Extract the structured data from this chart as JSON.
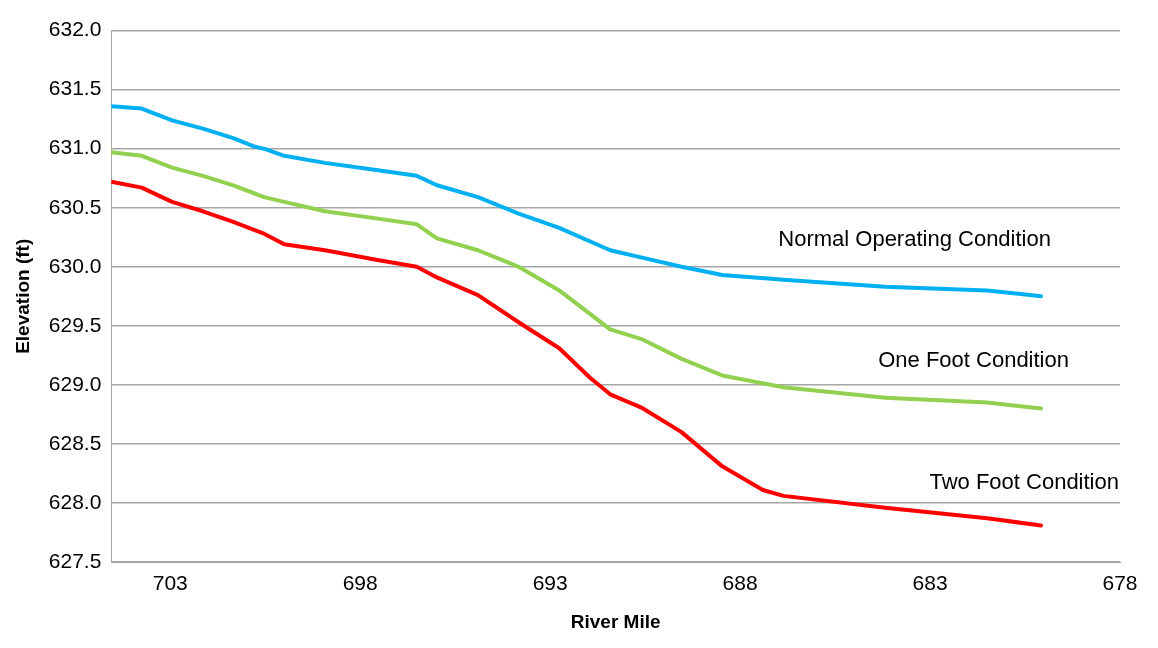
{
  "chart_data": {
    "type": "line",
    "xlabel": "River Mile",
    "ylabel": "Elevation (ft)",
    "xlim": [
      704.55,
      678
    ],
    "xticks": [
      703,
      698,
      693,
      688,
      683,
      678
    ],
    "ylim": [
      627.5,
      632
    ],
    "yticks": [
      {
        "value": 627.5,
        "label": "627.5"
      },
      {
        "value": 628,
        "label": "628.0"
      },
      {
        "value": 628.5,
        "label": "628.5"
      },
      {
        "value": 629,
        "label": "629.0"
      },
      {
        "value": 629.5,
        "label": "629.5"
      },
      {
        "value": 630,
        "label": "630.0"
      },
      {
        "value": 630.5,
        "label": "630.5"
      },
      {
        "value": 631,
        "label": "631.0"
      },
      {
        "value": 631.5,
        "label": "631.5"
      },
      {
        "value": 632,
        "label": "632.0"
      }
    ],
    "grid": "y",
    "legend": false,
    "marker": "none",
    "line_style": "solid",
    "series": [
      {
        "name": "Normal Operating Condition",
        "color": "#00b0f0",
        "x": [
          704.55,
          703.75,
          702.95,
          702.14,
          701.34,
          700.8,
          700.53,
          700.0,
          698.93,
          697.58,
          696.51,
          695.98,
          694.9,
          693.83,
          692.76,
          691.42,
          690.61,
          689.54,
          688.47,
          686.86,
          684.18,
          681.5,
          680.08
        ],
        "values": [
          631.36,
          631.34,
          631.24,
          631.17,
          631.09,
          631.02,
          631.0,
          630.94,
          630.88,
          630.82,
          630.77,
          630.69,
          630.59,
          630.45,
          630.33,
          630.14,
          630.08,
          630.0,
          629.93,
          629.89,
          629.83,
          629.8,
          629.75
        ]
      },
      {
        "name": "One Foot Condition",
        "color": "#92d050",
        "x": [
          704.55,
          703.75,
          702.95,
          702.14,
          701.34,
          700.53,
          700.0,
          698.93,
          697.58,
          696.51,
          695.98,
          694.9,
          693.83,
          692.76,
          691.42,
          690.61,
          689.54,
          688.47,
          686.86,
          684.18,
          681.5,
          680.08
        ],
        "values": [
          630.97,
          630.94,
          630.84,
          630.77,
          630.69,
          630.59,
          630.55,
          630.47,
          630.41,
          630.36,
          630.24,
          630.14,
          630.0,
          629.8,
          629.47,
          629.39,
          629.22,
          629.08,
          628.98,
          628.89,
          628.85,
          628.8
        ]
      },
      {
        "name": "Two Foot Condition",
        "color": "#ff0000",
        "x": [
          704.55,
          703.75,
          702.95,
          702.14,
          701.34,
          700.53,
          700.0,
          698.93,
          697.58,
          696.51,
          695.98,
          694.9,
          693.83,
          692.76,
          691.95,
          691.42,
          690.61,
          689.54,
          688.47,
          687.4,
          686.86,
          684.18,
          681.5,
          680.08
        ],
        "values": [
          630.72,
          630.67,
          630.55,
          630.47,
          630.38,
          630.28,
          630.19,
          630.14,
          630.06,
          630.0,
          629.91,
          629.76,
          629.53,
          629.31,
          629.06,
          628.92,
          628.81,
          628.6,
          628.31,
          628.11,
          628.06,
          627.96,
          627.87,
          627.81
        ]
      }
    ]
  }
}
